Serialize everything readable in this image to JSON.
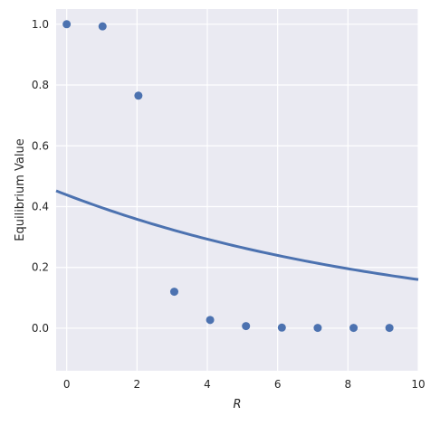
{
  "chart_data": {
    "type": "scatter",
    "xlabel": "R",
    "ylabel": "Equilibrium Value",
    "xlim": [
      -0.3,
      10
    ],
    "ylim": [
      -0.14,
      1.05
    ],
    "xticks": [
      "0",
      "2",
      "4",
      "6",
      "8",
      "10"
    ],
    "yticks": [
      "0.0",
      "0.2",
      "0.4",
      "0.6",
      "0.8",
      "1.0"
    ],
    "grid": true,
    "background_color": "#eaeaf2",
    "grid_color": "#ffffff",
    "series": [
      {
        "type": "scatter",
        "color": "#4c72b0",
        "x": [
          0,
          1.02,
          2.04,
          3.06,
          4.08,
          5.1,
          6.12,
          7.14,
          8.16,
          9.18
        ],
        "y": [
          1.0,
          0.993,
          0.765,
          0.12,
          0.027,
          0.007,
          0.002,
          0.001,
          0.001,
          0.001
        ]
      },
      {
        "type": "line",
        "color": "#4c72b0",
        "x": [
          -0.3,
          10
        ],
        "y": [
          0.452,
          0.16
        ],
        "model": "exponential"
      }
    ]
  }
}
